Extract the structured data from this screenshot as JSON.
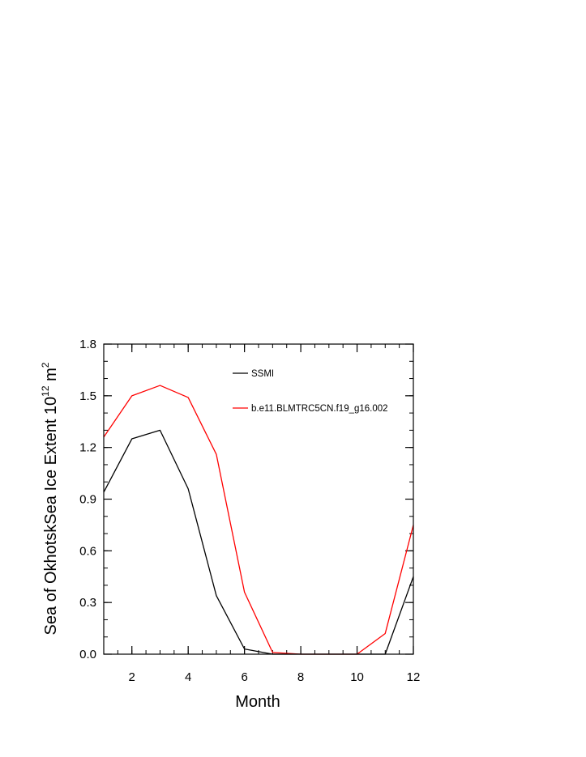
{
  "chart_data": {
    "type": "line",
    "xlabel": "Month",
    "ylabel": {
      "text": "Sea of OkhotskSea Ice Extent 10",
      "exp1": "12",
      "unit": " m",
      "exp2": "2"
    },
    "xlim": [
      1,
      12
    ],
    "ylim": [
      0,
      1.8
    ],
    "xticks": [
      2,
      4,
      6,
      8,
      10,
      12
    ],
    "yticks": [
      0.0,
      0.3,
      0.6,
      0.9,
      1.2,
      1.5,
      1.8
    ],
    "ytick_labels": [
      "0.0",
      "0.3",
      "0.6",
      "0.9",
      "1.2",
      "1.5",
      "1.8"
    ],
    "xtick_labels": [
      "2",
      "4",
      "6",
      "8",
      "10",
      "12"
    ],
    "x": [
      1,
      2,
      3,
      4,
      5,
      6,
      7,
      8,
      9,
      10,
      11,
      12
    ],
    "series": [
      {
        "name": "SSMI",
        "color": "#000000",
        "values": [
          0.94,
          1.25,
          1.3,
          0.96,
          0.34,
          0.03,
          0.0,
          0.0,
          0.0,
          0.0,
          0.0,
          0.45
        ]
      },
      {
        "name": "b.e11.BLMTRC5CN.f19_g16.002",
        "color": "#ff0000",
        "values": [
          1.26,
          1.5,
          1.56,
          1.49,
          1.16,
          0.36,
          0.01,
          0.0,
          0.0,
          0.0,
          0.12,
          0.75
        ]
      }
    ],
    "legend_placement": "top-right-inside",
    "grid": false
  }
}
